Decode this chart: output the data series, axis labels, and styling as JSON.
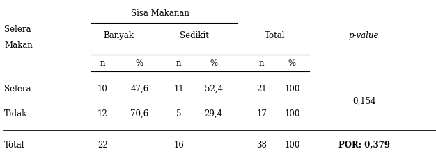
{
  "title_main": "Sisa Makanan",
  "col_header1": "Banyak",
  "col_header2": "Sedikit",
  "col_header3": "Total",
  "col_header4": "p-value",
  "sub_headers": [
    "n",
    "%",
    "n",
    "%",
    "n",
    "%"
  ],
  "rows": [
    {
      "label": "Selera",
      "banyak_n": "10",
      "banyak_pct": "47,6",
      "sedikit_n": "11",
      "sedikit_pct": "52,4",
      "total_n": "21",
      "total_pct": "100"
    },
    {
      "label": "Tidak",
      "banyak_n": "12",
      "banyak_pct": "70,6",
      "sedikit_n": "5",
      "sedikit_pct": "29,4",
      "total_n": "17",
      "total_pct": "100"
    }
  ],
  "total_row": {
    "label": "Total",
    "banyak_n": "22",
    "banyak_pct": "",
    "sedikit_n": "16",
    "sedikit_pct": "",
    "total_n": "38",
    "total_pct": "100"
  },
  "pvalue": "0,154",
  "por": "POR: 0,379",
  "bg_color": "#ffffff",
  "text_color": "#000000",
  "font_size": 8.5,
  "figsize": [
    6.26,
    2.31
  ]
}
